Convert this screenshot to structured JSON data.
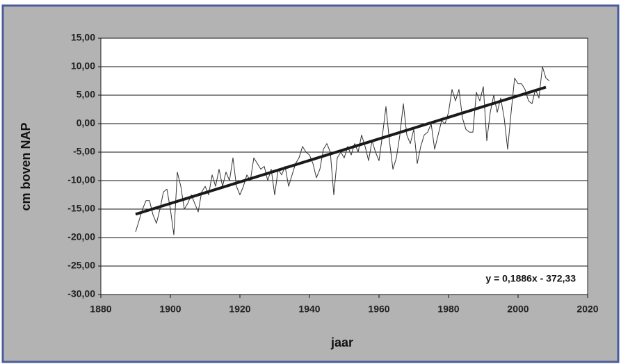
{
  "chart_data": {
    "type": "line",
    "ylabel": "cm boven NAP",
    "xlabel": "jaar",
    "annotation": "y = 0,1886x - 372,33",
    "xlim": [
      1880,
      2020
    ],
    "xticks": [
      1880,
      1900,
      1920,
      1940,
      1960,
      1980,
      2000,
      2020
    ],
    "ylim": [
      -30,
      15
    ],
    "yticks": [
      {
        "value": -30,
        "label": "-30,00"
      },
      {
        "value": -25,
        "label": "-25,00"
      },
      {
        "value": -20,
        "label": "-20,00"
      },
      {
        "value": -15,
        "label": "-15,00"
      },
      {
        "value": -10,
        "label": "-10,00"
      },
      {
        "value": -5,
        "label": "-5,00"
      },
      {
        "value": 0,
        "label": "0,00"
      },
      {
        "value": 5,
        "label": "5,00"
      },
      {
        "value": 10,
        "label": "10,00"
      },
      {
        "value": 15,
        "label": "15,00"
      }
    ],
    "grid": true,
    "series": [
      {
        "color": "#333333",
        "line_width": 1,
        "x": [
          1890,
          1891,
          1892,
          1893,
          1894,
          1895,
          1896,
          1897,
          1898,
          1899,
          1900,
          1901,
          1902,
          1903,
          1904,
          1905,
          1906,
          1907,
          1908,
          1909,
          1910,
          1911,
          1912,
          1913,
          1914,
          1915,
          1916,
          1917,
          1918,
          1919,
          1920,
          1921,
          1922,
          1923,
          1924,
          1925,
          1926,
          1927,
          1928,
          1929,
          1930,
          1931,
          1932,
          1933,
          1934,
          1935,
          1936,
          1937,
          1938,
          1939,
          1940,
          1941,
          1942,
          1943,
          1944,
          1945,
          1946,
          1947,
          1948,
          1949,
          1950,
          1951,
          1952,
          1953,
          1954,
          1955,
          1956,
          1957,
          1958,
          1959,
          1960,
          1961,
          1962,
          1963,
          1964,
          1965,
          1966,
          1967,
          1968,
          1969,
          1970,
          1971,
          1972,
          1973,
          1974,
          1975,
          1976,
          1977,
          1978,
          1979,
          1980,
          1981,
          1982,
          1983,
          1984,
          1985,
          1986,
          1987,
          1988,
          1989,
          1990,
          1991,
          1992,
          1993,
          1994,
          1995,
          1996,
          1997,
          1998,
          1999,
          2000,
          2001,
          2002,
          2003,
          2004,
          2005,
          2006,
          2007,
          2008,
          2009
        ],
        "values": [
          -19,
          -17,
          -15,
          -13.5,
          -13.5,
          -16,
          -17.5,
          -15,
          -12,
          -11.5,
          -15,
          -19.5,
          -8.5,
          -11,
          -15,
          -14,
          -12.5,
          -14,
          -15.5,
          -12,
          -11,
          -12.5,
          -9,
          -11,
          -8,
          -11,
          -8.5,
          -10,
          -6,
          -11,
          -12.5,
          -11,
          -9,
          -10,
          -6,
          -7,
          -8,
          -7.5,
          -10,
          -8,
          -12.5,
          -8,
          -9,
          -7.5,
          -11,
          -9,
          -7,
          -6,
          -4,
          -5,
          -5.5,
          -7,
          -9.5,
          -8,
          -4.5,
          -3.5,
          -5,
          -12.5,
          -6,
          -5,
          -6,
          -4,
          -5.5,
          -3.5,
          -5,
          -2,
          -4,
          -6.5,
          -3,
          -5,
          -6.5,
          -2,
          3,
          -3,
          -8,
          -6,
          -2,
          3.5,
          -2,
          -3.5,
          -1,
          -7,
          -4,
          -2,
          -1.5,
          0,
          -4.5,
          -2,
          0.5,
          0,
          2,
          6,
          4,
          6,
          1,
          -1,
          -1.5,
          -1.5,
          5.5,
          4,
          6.5,
          -3,
          2,
          5,
          2,
          4.5,
          1,
          -4.5,
          2,
          8,
          7,
          7,
          6,
          4,
          3.5,
          6,
          4.5,
          10,
          8,
          7.5
        ]
      },
      {
        "color": "#1a1a1a",
        "line_width": 4,
        "x": [
          1890,
          2008
        ],
        "values": [
          -15.9,
          6.4
        ]
      }
    ]
  }
}
